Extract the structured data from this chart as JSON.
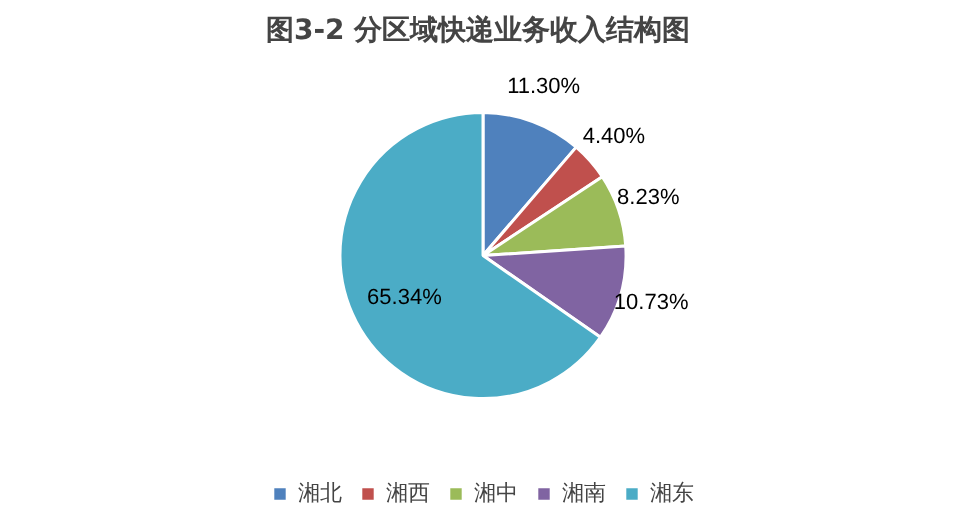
{
  "chart_data": {
    "type": "pie",
    "title": "图3-2  分区域快递业务收入结构图",
    "categories": [
      "湘北",
      "湘西",
      "湘中",
      "湘南",
      "湘东"
    ],
    "values": [
      11.3,
      4.4,
      8.23,
      10.73,
      65.34
    ],
    "value_labels": [
      "11.30%",
      "4.40%",
      "8.23%",
      "10.73%",
      "65.34%"
    ],
    "colors": [
      "#4f81bd",
      "#c0504d",
      "#9bbb59",
      "#8064a2",
      "#4bacc6"
    ],
    "legend": "bottom"
  }
}
